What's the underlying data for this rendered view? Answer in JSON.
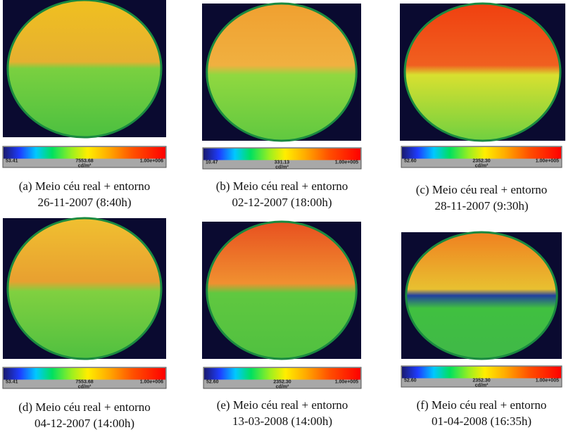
{
  "panels": [
    {
      "caption": [
        "(a) Meio céu real + entorno",
        "26-11-2007 (8:40h)"
      ],
      "colorbar": {
        "min": "53.41",
        "mid": "7553.68",
        "max": "1.00e+006",
        "unit": "cd/m²"
      }
    },
    {
      "caption": [
        "(b) Meio céu real + entorno",
        "02-12-2007 (18:00h)"
      ],
      "colorbar": {
        "min": "10.47",
        "mid": "331.13",
        "max": "1.00e+005",
        "unit": "cd/m²"
      }
    },
    {
      "caption": [
        "(c) Meio céu real + entorno",
        "28-11-2007 (9:30h)"
      ],
      "colorbar": {
        "min": "52.60",
        "mid": "2352.30",
        "max": "1.00e+005",
        "unit": "cd/m²"
      }
    },
    {
      "caption": [
        "(d) Meio céu real + entorno",
        "04-12-2007 (14:00h)"
      ],
      "colorbar": {
        "min": "53.41",
        "mid": "7553.68",
        "max": "1.00e+006",
        "unit": "cd/m²"
      }
    },
    {
      "caption": [
        "(e) Meio céu real + entorno",
        "13-03-2008 (14:00h)"
      ],
      "colorbar": {
        "min": "52.60",
        "mid": "2352.30",
        "max": "1.00e+005",
        "unit": "cd/m²"
      }
    },
    {
      "caption": [
        "(f) Meio céu real + entorno",
        "01-04-2008 (16:35h)"
      ],
      "colorbar": {
        "min": "52.60",
        "mid": "2352.30",
        "max": "1.00e+005",
        "unit": "cd/m²"
      }
    }
  ]
}
